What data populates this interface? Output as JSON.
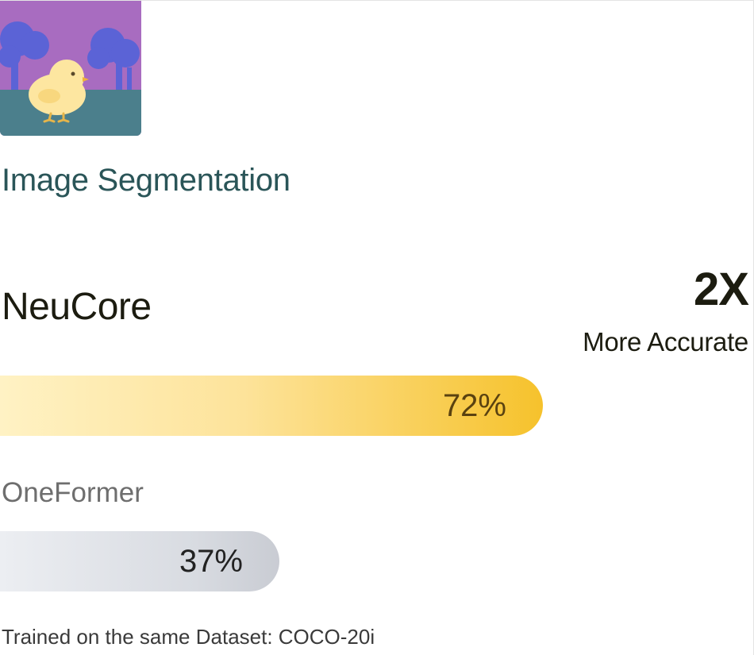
{
  "card": {
    "image_icon": "chick-landscape-illustration",
    "task_title": "Image Segmentation",
    "comparison": {
      "multiplier": "2X",
      "multiplier_caption": "More Accurate"
    },
    "models": [
      {
        "name": "NeuCore",
        "value": 72,
        "value_label": "72%",
        "bar_color_start": "#fff2c4",
        "bar_color_end": "#f6c22c"
      },
      {
        "name": "OneFormer",
        "value": 37,
        "value_label": "37%",
        "bar_color_start": "#eceef2",
        "bar_color_end": "#c9ccd3"
      }
    ],
    "footnote": "Trained on the same Dataset: COCO-20i"
  }
}
